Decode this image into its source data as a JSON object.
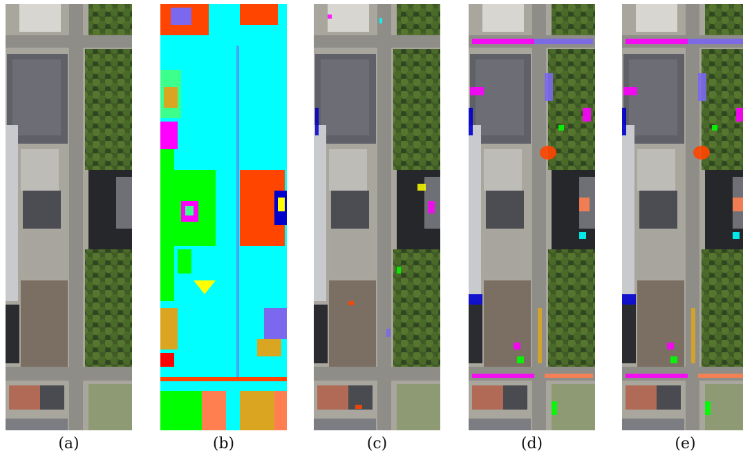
{
  "figure": {
    "panels": [
      {
        "id": "a",
        "label": "(a)",
        "kind": "aerial-photo"
      },
      {
        "id": "b",
        "label": "(b)",
        "kind": "segmentation-map"
      },
      {
        "id": "c",
        "label": "(c)",
        "kind": "photo-with-overlay"
      },
      {
        "id": "d",
        "label": "(d)",
        "kind": "photo-with-overlay"
      },
      {
        "id": "e",
        "label": "(e)",
        "kind": "photo-with-overlay"
      }
    ],
    "palette": {
      "cyan": "#00ffff",
      "green": "#00ff00",
      "orange_red": "#ff4500",
      "yellow": "#ffff00",
      "magenta": "#ff00ff",
      "purple": "#7b68ee",
      "blue": "#0000cd",
      "gold": "#daa520",
      "red": "#ff0000",
      "spring_green": "#3cff8c",
      "coral": "#ff7f50"
    }
  }
}
